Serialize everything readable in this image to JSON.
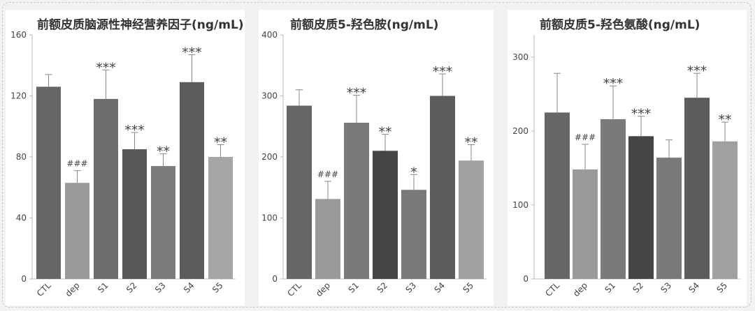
{
  "chart_data": [
    {
      "type": "bar",
      "title": "前额皮质脑源性神经营养因子(ng/mL)",
      "categories": [
        "CTL",
        "dep",
        "S1",
        "S2",
        "S3",
        "S4",
        "S5"
      ],
      "values": [
        126,
        63,
        118,
        85,
        74,
        129,
        80
      ],
      "errors": [
        8,
        8,
        19,
        11,
        8,
        18,
        8
      ],
      "annotations": [
        "",
        "###",
        "***",
        "***",
        "**",
        "***",
        "**"
      ],
      "colors": [
        "#666666",
        "#9a9a9a",
        "#6e6e6e",
        "#585858",
        "#7c7c7c",
        "#5c5c5c",
        "#a6a6a6"
      ],
      "ylim": [
        0,
        160
      ],
      "yticks": [
        0,
        40,
        80,
        120,
        160
      ]
    },
    {
      "type": "bar",
      "title": "前额皮质5-羟色胺(ng/mL)",
      "categories": [
        "CTL",
        "dep",
        "S1",
        "S2",
        "S3",
        "S4",
        "S5"
      ],
      "values": [
        284,
        131,
        256,
        210,
        146,
        300,
        194
      ],
      "errors": [
        26,
        29,
        45,
        27,
        25,
        36,
        26
      ],
      "annotations": [
        "",
        "###",
        "***",
        "**",
        "*",
        "***",
        "**"
      ],
      "colors": [
        "#666666",
        "#9a9a9a",
        "#7a7a7a",
        "#454545",
        "#7a7a7a",
        "#5c5c5c",
        "#a0a0a0"
      ],
      "ylim": [
        0,
        400
      ],
      "yticks": [
        0,
        100,
        200,
        300,
        400
      ]
    },
    {
      "type": "bar",
      "title": "前额皮质5-羟色氨酸(ng/mL)",
      "categories": [
        "CTL",
        "dep",
        "S1",
        "S2",
        "S3",
        "S4",
        "S5"
      ],
      "values": [
        225,
        148,
        216,
        193,
        164,
        245,
        186
      ],
      "errors": [
        53,
        34,
        45,
        27,
        24,
        33,
        26
      ],
      "annotations": [
        "",
        "###",
        "***",
        "***",
        "",
        "***",
        "**"
      ],
      "colors": [
        "#666666",
        "#9a9a9a",
        "#7a7a7a",
        "#454545",
        "#7a7a7a",
        "#5c5c5c",
        "#a0a0a0"
      ],
      "ylim": [
        0,
        330
      ],
      "yticks": [
        0,
        100,
        200,
        300
      ]
    }
  ]
}
